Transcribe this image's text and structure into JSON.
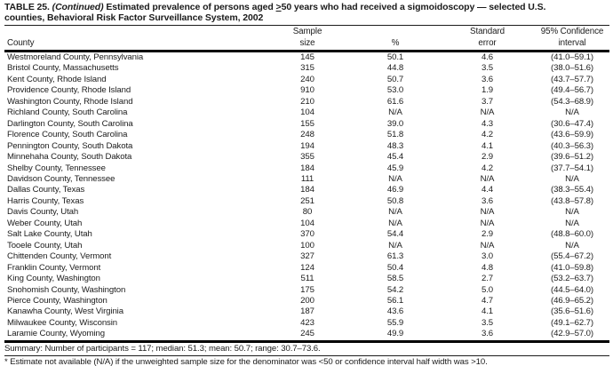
{
  "title": {
    "table_label": "TABLE 25.",
    "continued": "(Continued)",
    "line1_text": "Estimated prevalence of persons aged",
    "gte_symbol": ">",
    "line1_tail": "50 years who had received a sigmoidoscopy — selected U.S.",
    "line2": "counties, Behavioral Risk Factor Surveillance System, 2002"
  },
  "table": {
    "header": {
      "county": "County",
      "sample_line1": "Sample",
      "sample_line2": "size",
      "percent": "%",
      "se_line1": "Standard",
      "se_line2": "error",
      "ci_line1": "95% Confidence",
      "ci_line2": "interval"
    },
    "rows": [
      {
        "county": "Westmoreland County, Pennsylvania",
        "sample_size": "145",
        "percent": "50.1",
        "standard_error": "4.6",
        "confidence_interval": "(41.0–59.1)"
      },
      {
        "county": "Bristol County, Massachusetts",
        "sample_size": "315",
        "percent": "44.8",
        "standard_error": "3.5",
        "confidence_interval": "(38.0–51.6)"
      },
      {
        "county": "Kent County, Rhode Island",
        "sample_size": "240",
        "percent": "50.7",
        "standard_error": "3.6",
        "confidence_interval": "(43.7–57.7)"
      },
      {
        "county": "Providence County, Rhode Island",
        "sample_size": "910",
        "percent": "53.0",
        "standard_error": "1.9",
        "confidence_interval": "(49.4–56.7)"
      },
      {
        "county": "Washington County, Rhode Island",
        "sample_size": "210",
        "percent": "61.6",
        "standard_error": "3.7",
        "confidence_interval": "(54.3–68.9)"
      },
      {
        "county": "Richland County, South Carolina",
        "sample_size": "104",
        "percent": "N/A",
        "standard_error": "N/A",
        "confidence_interval": "N/A"
      },
      {
        "county": "Darlington County, South Carolina",
        "sample_size": "155",
        "percent": "39.0",
        "standard_error": "4.3",
        "confidence_interval": "(30.6–47.4)"
      },
      {
        "county": "Florence County, South Carolina",
        "sample_size": "248",
        "percent": "51.8",
        "standard_error": "4.2",
        "confidence_interval": "(43.6–59.9)"
      },
      {
        "county": "Pennington County, South Dakota",
        "sample_size": "194",
        "percent": "48.3",
        "standard_error": "4.1",
        "confidence_interval": "(40.3–56.3)"
      },
      {
        "county": "Minnehaha County, South Dakota",
        "sample_size": "355",
        "percent": "45.4",
        "standard_error": "2.9",
        "confidence_interval": "(39.6–51.2)"
      },
      {
        "county": "Shelby County, Tennessee",
        "sample_size": "184",
        "percent": "45.9",
        "standard_error": "4.2",
        "confidence_interval": "(37.7–54.1)"
      },
      {
        "county": "Davidson County, Tennessee",
        "sample_size": "111",
        "percent": "N/A",
        "standard_error": "N/A",
        "confidence_interval": "N/A"
      },
      {
        "county": "Dallas County, Texas",
        "sample_size": "184",
        "percent": "46.9",
        "standard_error": "4.4",
        "confidence_interval": "(38.3–55.4)"
      },
      {
        "county": "Harris County, Texas",
        "sample_size": "251",
        "percent": "50.8",
        "standard_error": "3.6",
        "confidence_interval": "(43.8–57.8)"
      },
      {
        "county": "Davis County, Utah",
        "sample_size": "80",
        "percent": "N/A",
        "standard_error": "N/A",
        "confidence_interval": "N/A"
      },
      {
        "county": "Weber County, Utah",
        "sample_size": "104",
        "percent": "N/A",
        "standard_error": "N/A",
        "confidence_interval": "N/A"
      },
      {
        "county": "Salt Lake County, Utah",
        "sample_size": "370",
        "percent": "54.4",
        "standard_error": "2.9",
        "confidence_interval": "(48.8–60.0)"
      },
      {
        "county": "Tooele County, Utah",
        "sample_size": "100",
        "percent": "N/A",
        "standard_error": "N/A",
        "confidence_interval": "N/A"
      },
      {
        "county": "Chittenden County, Vermont",
        "sample_size": "327",
        "percent": "61.3",
        "standard_error": "3.0",
        "confidence_interval": "(55.4–67.2)"
      },
      {
        "county": "Franklin County, Vermont",
        "sample_size": "124",
        "percent": "50.4",
        "standard_error": "4.8",
        "confidence_interval": "(41.0–59.8)"
      },
      {
        "county": "King County, Washington",
        "sample_size": "511",
        "percent": "58.5",
        "standard_error": "2.7",
        "confidence_interval": "(53.2–63.7)"
      },
      {
        "county": "Snohomish County, Washington",
        "sample_size": "175",
        "percent": "54.2",
        "standard_error": "5.0",
        "confidence_interval": "(44.5–64.0)"
      },
      {
        "county": "Pierce County, Washington",
        "sample_size": "200",
        "percent": "56.1",
        "standard_error": "4.7",
        "confidence_interval": "(46.9–65.2)"
      },
      {
        "county": "Kanawha County, West Virginia",
        "sample_size": "187",
        "percent": "43.6",
        "standard_error": "4.1",
        "confidence_interval": "(35.6–51.6)"
      },
      {
        "county": "Milwaukee County, Wisconsin",
        "sample_size": "423",
        "percent": "55.9",
        "standard_error": "3.5",
        "confidence_interval": "(49.1–62.7)"
      },
      {
        "county": "Laramie County, Wyoming",
        "sample_size": "245",
        "percent": "49.9",
        "standard_error": "3.6",
        "confidence_interval": "(42.9–57.0)"
      }
    ]
  },
  "footer": {
    "summary": "Summary: Number of participants = 117; median: 51.3; mean: 50.7; range: 30.7–73.6.",
    "footnote": "* Estimate not available (N/A) if the unweighted sample size for the denominator was <50 or confidence interval half width was >10."
  }
}
